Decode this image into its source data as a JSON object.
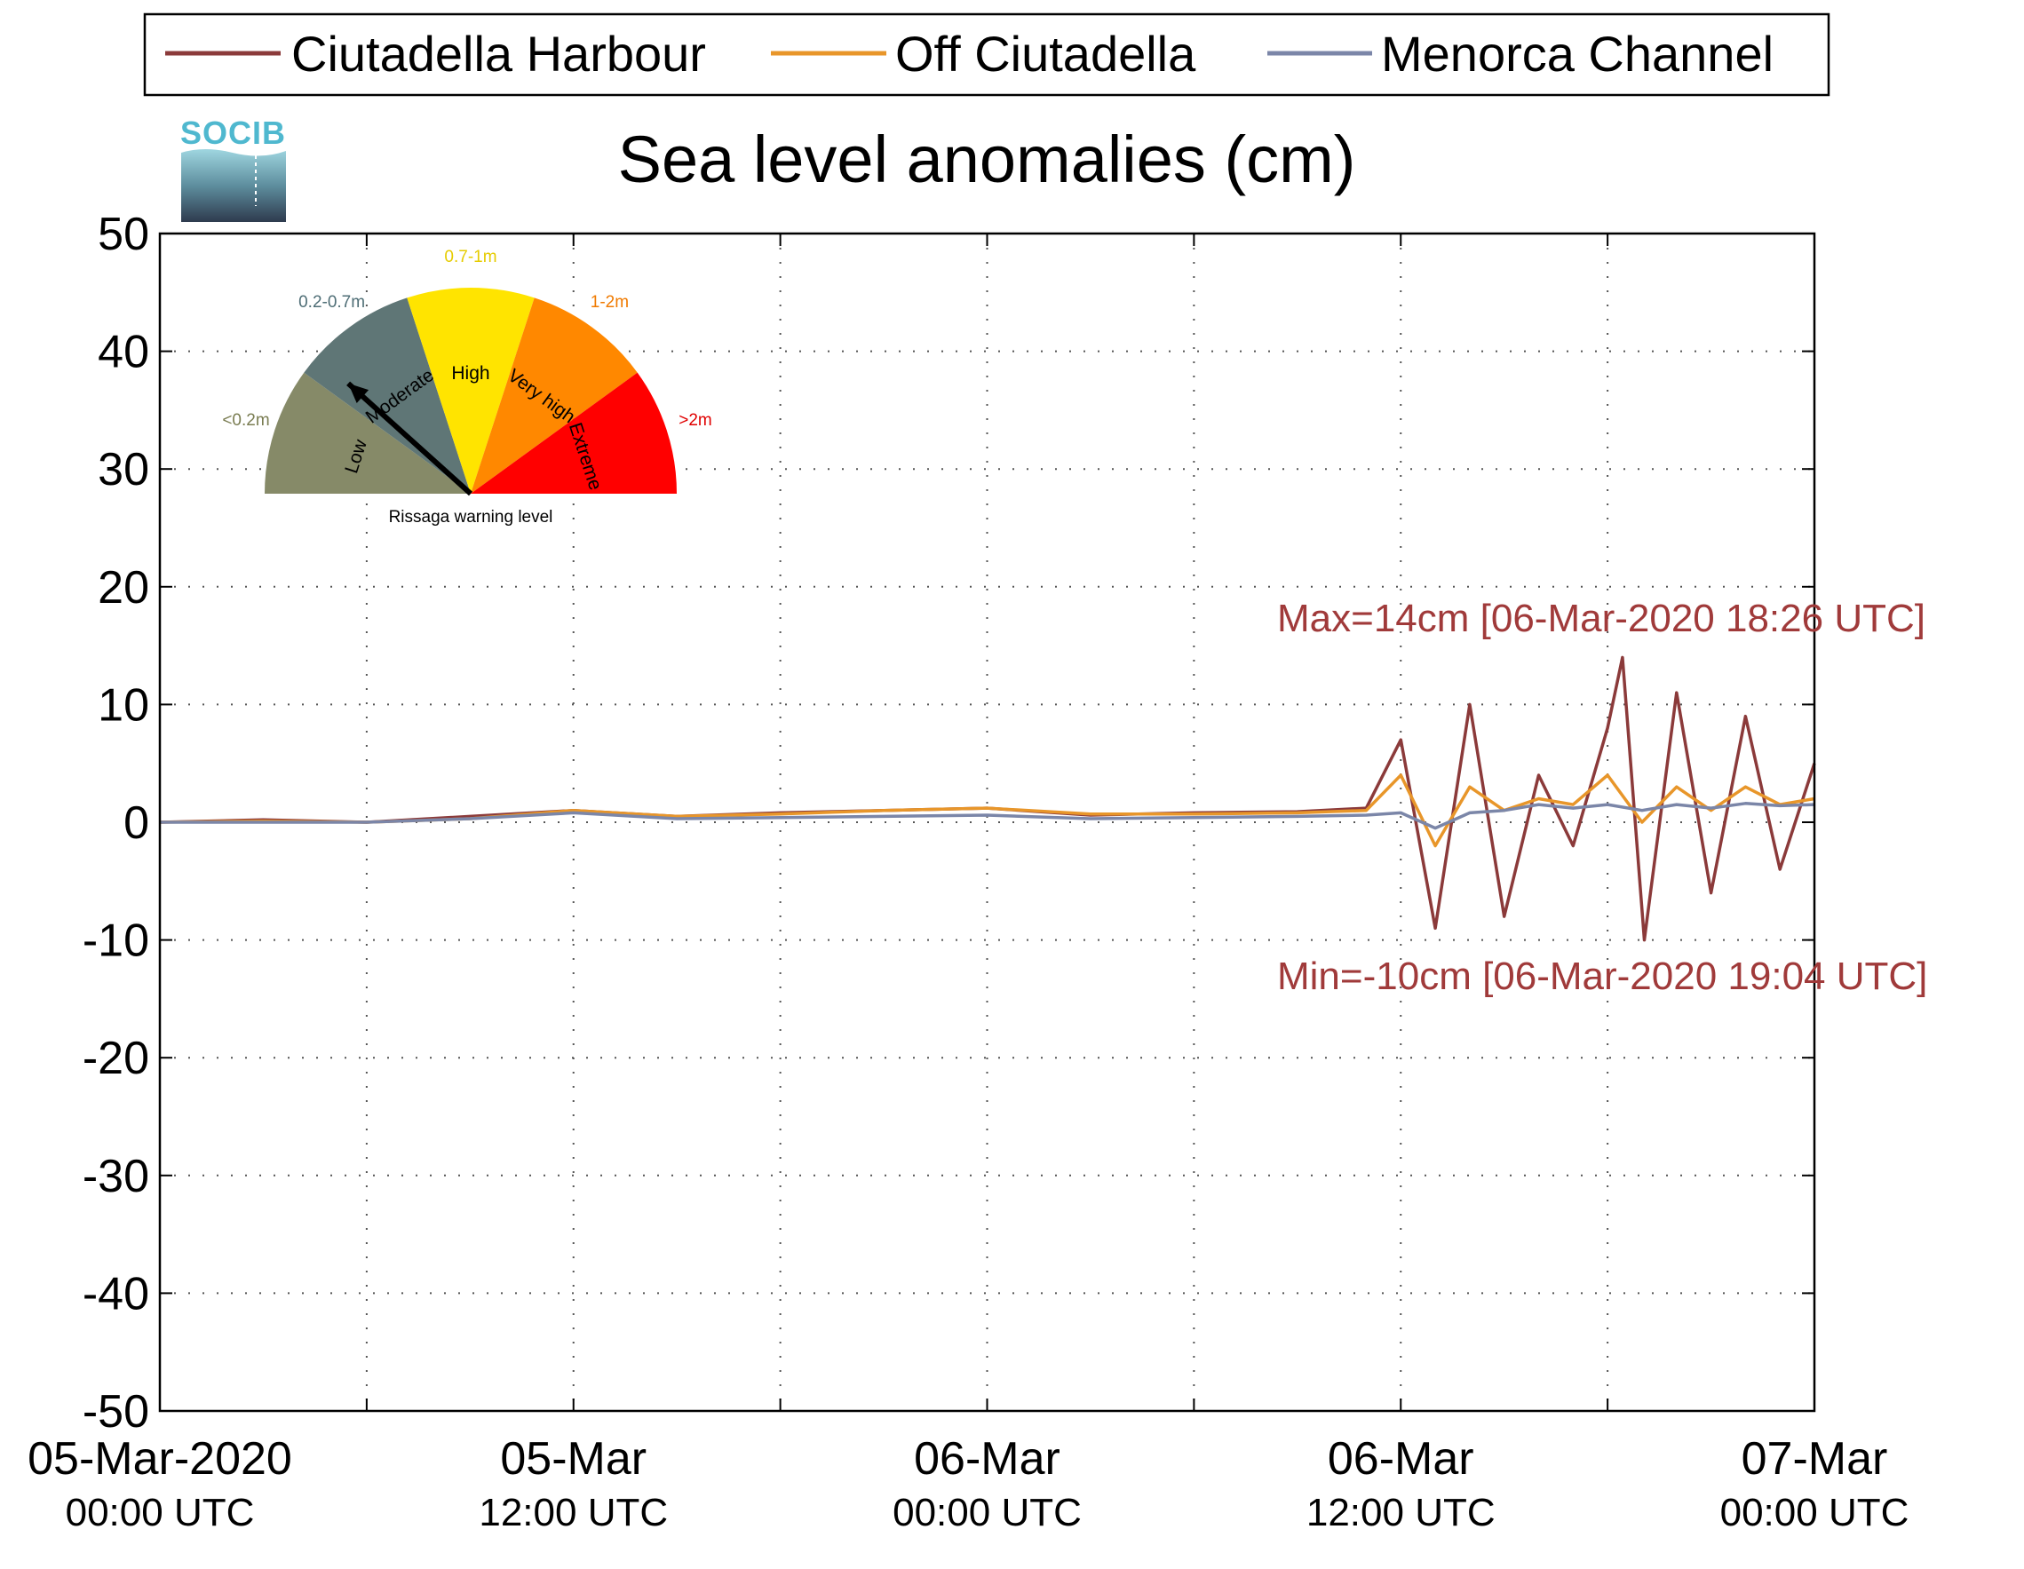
{
  "chart_data": {
    "type": "line",
    "title": "Sea level anomalies (cm)",
    "xlabel": "",
    "ylabel": "",
    "ylim": [
      -50,
      50
    ],
    "yticks": [
      50,
      40,
      30,
      20,
      10,
      0,
      -10,
      -20,
      -30,
      -40,
      -50
    ],
    "xlim": [
      "2020-03-05T00:00Z",
      "2020-03-07T00:00Z"
    ],
    "xtick_labels": [
      {
        "x": "2020-03-05T00:00Z",
        "line1": "05-Mar-2020",
        "line2": "00:00 UTC"
      },
      {
        "x": "2020-03-05T12:00Z",
        "line1": "05-Mar",
        "line2": "12:00 UTC"
      },
      {
        "x": "2020-03-06T00:00Z",
        "line1": "06-Mar",
        "line2": "00:00 UTC"
      },
      {
        "x": "2020-03-06T12:00Z",
        "line1": "06-Mar",
        "line2": "12:00 UTC"
      },
      {
        "x": "2020-03-07T00:00Z",
        "line1": "07-Mar",
        "line2": "00:00 UTC"
      }
    ],
    "grid": true,
    "legend_position": "top",
    "series": [
      {
        "name": "Ciutadella Harbour",
        "color": "#8b3a3a",
        "x": [
          "2020-03-05T00:00Z",
          "2020-03-05T03:00Z",
          "2020-03-05T06:00Z",
          "2020-03-05T09:00Z",
          "2020-03-05T12:00Z",
          "2020-03-05T15:00Z",
          "2020-03-05T18:00Z",
          "2020-03-05T21:00Z",
          "2020-03-06T00:00Z",
          "2020-03-06T03:00Z",
          "2020-03-06T06:00Z",
          "2020-03-06T09:00Z",
          "2020-03-06T11:00Z",
          "2020-03-06T12:00Z",
          "2020-03-06T13:00Z",
          "2020-03-06T14:00Z",
          "2020-03-06T15:00Z",
          "2020-03-06T16:00Z",
          "2020-03-06T17:00Z",
          "2020-03-06T18:00Z",
          "2020-03-06T18:26Z",
          "2020-03-06T19:04Z",
          "2020-03-06T20:00Z",
          "2020-03-06T21:00Z",
          "2020-03-06T22:00Z",
          "2020-03-06T23:00Z",
          "2020-03-07T00:00Z"
        ],
        "y": [
          0,
          0.2,
          0,
          0.5,
          1,
          0.5,
          0.8,
          1,
          1.2,
          0.6,
          0.8,
          0.9,
          1.2,
          7,
          -9,
          10,
          -8,
          4,
          -2,
          8,
          14,
          -10,
          11,
          -6,
          9,
          -4,
          5
        ]
      },
      {
        "name": "Off Ciutadella",
        "color": "#e8962a",
        "x": [
          "2020-03-05T00:00Z",
          "2020-03-05T03:00Z",
          "2020-03-05T06:00Z",
          "2020-03-05T09:00Z",
          "2020-03-05T12:00Z",
          "2020-03-05T15:00Z",
          "2020-03-05T18:00Z",
          "2020-03-05T21:00Z",
          "2020-03-06T00:00Z",
          "2020-03-06T03:00Z",
          "2020-03-06T06:00Z",
          "2020-03-06T09:00Z",
          "2020-03-06T11:00Z",
          "2020-03-06T12:00Z",
          "2020-03-06T13:00Z",
          "2020-03-06T14:00Z",
          "2020-03-06T15:00Z",
          "2020-03-06T16:00Z",
          "2020-03-06T17:00Z",
          "2020-03-06T18:00Z",
          "2020-03-06T19:00Z",
          "2020-03-06T20:00Z",
          "2020-03-06T21:00Z",
          "2020-03-06T22:00Z",
          "2020-03-06T23:00Z",
          "2020-03-07T00:00Z"
        ],
        "y": [
          0,
          0.1,
          0,
          0.3,
          1,
          0.5,
          0.7,
          1,
          1.2,
          0.7,
          0.7,
          0.8,
          1,
          4,
          -2,
          3,
          1,
          2,
          1.5,
          4,
          0,
          3,
          1,
          3,
          1.5,
          2
        ]
      },
      {
        "name": "Menorca Channel",
        "color": "#7b86a8",
        "x": [
          "2020-03-05T00:00Z",
          "2020-03-05T03:00Z",
          "2020-03-05T06:00Z",
          "2020-03-05T09:00Z",
          "2020-03-05T12:00Z",
          "2020-03-05T15:00Z",
          "2020-03-05T18:00Z",
          "2020-03-05T21:00Z",
          "2020-03-06T00:00Z",
          "2020-03-06T03:00Z",
          "2020-03-06T06:00Z",
          "2020-03-06T09:00Z",
          "2020-03-06T11:00Z",
          "2020-03-06T12:00Z",
          "2020-03-06T13:00Z",
          "2020-03-06T14:00Z",
          "2020-03-06T15:00Z",
          "2020-03-06T16:00Z",
          "2020-03-06T17:00Z",
          "2020-03-06T18:00Z",
          "2020-03-06T19:00Z",
          "2020-03-06T20:00Z",
          "2020-03-06T21:00Z",
          "2020-03-06T22:00Z",
          "2020-03-06T23:00Z",
          "2020-03-07T00:00Z"
        ],
        "y": [
          0,
          0,
          0,
          0.3,
          0.8,
          0.3,
          0.4,
          0.5,
          0.6,
          0.3,
          0.4,
          0.5,
          0.6,
          0.8,
          -0.5,
          0.8,
          1,
          1.5,
          1.2,
          1.5,
          1,
          1.5,
          1.2,
          1.6,
          1.4,
          1.5
        ]
      }
    ],
    "annotations": [
      {
        "text": "Max=14cm [06-Mar-2020 18:26 UTC]",
        "color": "#a03a3a"
      },
      {
        "text": "Min=-10cm [06-Mar-2020 19:04 UTC]",
        "color": "#a03a3a"
      }
    ]
  },
  "logo": {
    "text": "SOCIB"
  },
  "gauge": {
    "title": "Rissaga warning level",
    "needle_level": "Moderate",
    "levels": [
      {
        "name": "Low",
        "range": "<0.2m",
        "color": "#868a68",
        "range_color": "#7a7d52"
      },
      {
        "name": "Moderate",
        "range": "0.2-0.7m",
        "color": "#5f7676",
        "range_color": "#4f6e76"
      },
      {
        "name": "High",
        "range": "0.7-1m",
        "color": "#ffe400",
        "range_color": "#e6cc00"
      },
      {
        "name": "Very high",
        "range": "1-2m",
        "color": "#ff8800",
        "range_color": "#f07a00"
      },
      {
        "name": "Extreme",
        "range": ">2m",
        "color": "#ff0000",
        "range_color": "#e00000"
      }
    ]
  }
}
